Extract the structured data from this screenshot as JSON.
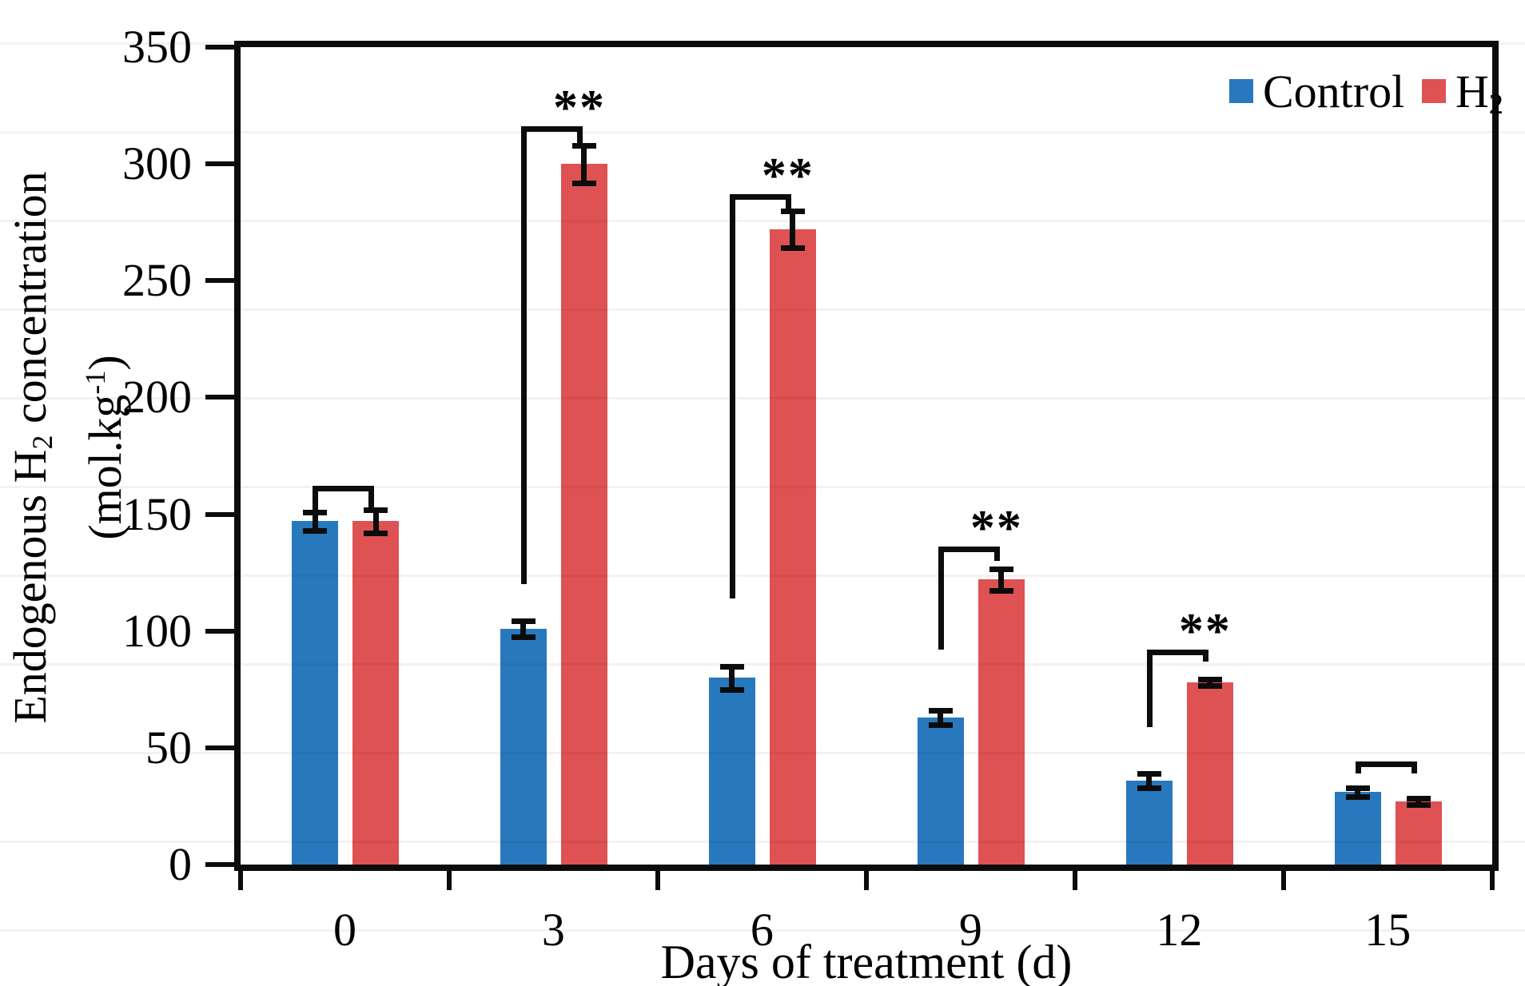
{
  "figure": {
    "xlabel": "Days of treatment (d)",
    "ylabel": {
      "line1_pre": "Endogenous H",
      "line1_sub": "2",
      "line1_post": " concentration",
      "line2_pre": "(mol.kg",
      "line2_sup": "-1",
      "line2_post": ")"
    },
    "legend": {
      "control_label": "Control",
      "h2_label_pre": "H",
      "h2_label_sub": "2"
    },
    "colors": {
      "control": "#2878BE",
      "h2": "#DE5254",
      "axis": "#0c0c0c"
    }
  },
  "chart_data": {
    "type": "bar",
    "title": "",
    "xlabel": "Days of treatment (d)",
    "ylabel": "Endogenous H2 concentration (mol.kg-1)",
    "categories": [
      "0",
      "3",
      "6",
      "9",
      "12",
      "15"
    ],
    "series": [
      {
        "name": "Control",
        "color": "#2878BE",
        "values": [
          147,
          101,
          80,
          63,
          36,
          31
        ],
        "errors": [
          4,
          3.5,
          5,
          3,
          3,
          2
        ]
      },
      {
        "name": "H2",
        "color": "#DE5254",
        "values": [
          147,
          300,
          272,
          122,
          78,
          27
        ],
        "errors": [
          5,
          8,
          8,
          4.5,
          1.5,
          1.5
        ]
      }
    ],
    "ylim": [
      0,
      350
    ],
    "ytick_step": 50,
    "grid": false,
    "legend_position": "top-right",
    "significance_brackets": [
      {
        "group": 0,
        "label": "",
        "top": 162,
        "left_down": 151,
        "right_down": 151
      },
      {
        "group": 1,
        "label": "**",
        "top": 316,
        "left_down": 120,
        "right_down": 308
      },
      {
        "group": 2,
        "label": "**",
        "top": 287,
        "left_down": 114,
        "right_down": 280
      },
      {
        "group": 3,
        "label": "**",
        "top": 136,
        "left_down": 92,
        "right_down": 130
      },
      {
        "group": 4,
        "label": "**",
        "top": 92,
        "left_down": 59,
        "right_down": 87
      },
      {
        "group": 5,
        "label": "",
        "top": 44,
        "left_down": 39,
        "right_down": 39
      }
    ]
  }
}
